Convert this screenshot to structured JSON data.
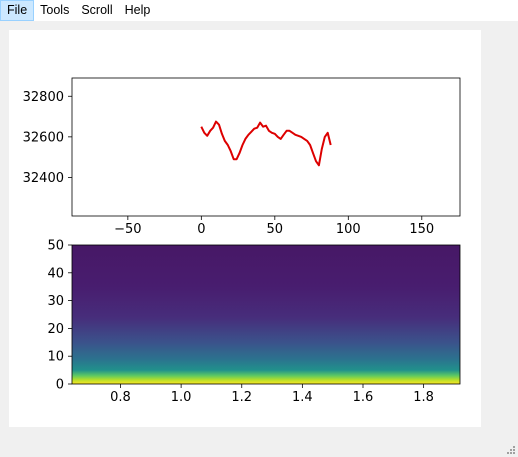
{
  "menu": {
    "items": [
      {
        "label": "File",
        "active": true
      },
      {
        "label": "Tools",
        "active": false
      },
      {
        "label": "Scroll",
        "active": false
      },
      {
        "label": "Help",
        "active": false
      }
    ]
  },
  "colors": {
    "line": "#dd0000",
    "viridis": [
      "#440154",
      "#482575",
      "#414487",
      "#2a788e",
      "#22a884",
      "#7ad151",
      "#fde725"
    ]
  },
  "chart_data": [
    {
      "type": "line",
      "title": "",
      "xlabel": "",
      "ylabel": "",
      "xlim": [
        -88,
        176
      ],
      "ylim": [
        32210,
        32890
      ],
      "xticks": [
        -50,
        0,
        50,
        100,
        150
      ],
      "xtick_labels": [
        "−50",
        "0",
        "50",
        "100",
        "150"
      ],
      "yticks": [
        32400,
        32600,
        32800
      ],
      "ytick_labels": [
        "32400",
        "32600",
        "32800"
      ],
      "grid": false,
      "series": [
        {
          "color": "#dd0000",
          "x": [
            0,
            2,
            4,
            6,
            8,
            10,
            12,
            14,
            16,
            18,
            20,
            22,
            24,
            26,
            28,
            30,
            32,
            34,
            36,
            38,
            40,
            42,
            44,
            46,
            48,
            50,
            52,
            54,
            56,
            58,
            60,
            62,
            64,
            66,
            68,
            70,
            72,
            74,
            76,
            78,
            80,
            82,
            84,
            86,
            88
          ],
          "y": [
            32650,
            32620,
            32605,
            32630,
            32645,
            32675,
            32660,
            32615,
            32580,
            32560,
            32530,
            32490,
            32490,
            32520,
            32560,
            32590,
            32610,
            32625,
            32640,
            32645,
            32670,
            32650,
            32655,
            32630,
            32620,
            32615,
            32600,
            32590,
            32610,
            32630,
            32630,
            32620,
            32610,
            32605,
            32600,
            32590,
            32580,
            32560,
            32520,
            32480,
            32460,
            32540,
            32600,
            32620,
            32560
          ]
        }
      ]
    },
    {
      "type": "heatmap",
      "title": "",
      "xlabel": "",
      "ylabel": "",
      "xlim": [
        0.64,
        1.92
      ],
      "ylim": [
        0,
        50
      ],
      "xticks": [
        0.8,
        1.0,
        1.2,
        1.4,
        1.6,
        1.8
      ],
      "xtick_labels": [
        "0.8",
        "1.0",
        "1.2",
        "1.4",
        "1.6",
        "1.8"
      ],
      "yticks": [
        0,
        10,
        20,
        30,
        40,
        50
      ],
      "ytick_labels": [
        "0",
        "10",
        "20",
        "30",
        "40",
        "50"
      ],
      "colormap": "viridis",
      "description": "intensity uniform across x, highest near y=0 and decaying with y"
    }
  ]
}
